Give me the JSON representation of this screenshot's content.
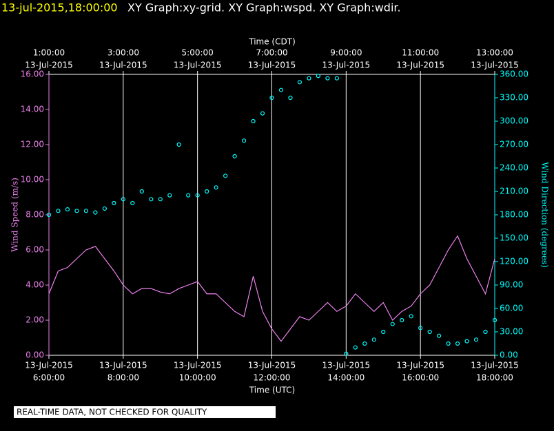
{
  "header": {
    "timestamp": "13-jul-2015,18:00:00",
    "graphs": "XY Graph:xy-grid.  XY Graph:wspd.  XY Graph:wdir."
  },
  "chart_data": {
    "type": "line-scatter",
    "x_label": "Time (UTC)",
    "x2_label": "Time (CDT)",
    "y_label": "Wind Speed (m/s)",
    "y2_label": "Wind Direction (degrees)",
    "xlim": [
      6,
      18
    ],
    "xticks": [
      {
        "value": 6,
        "label": "6:00:00"
      },
      {
        "value": 8,
        "label": "8:00:00"
      },
      {
        "value": 10,
        "label": "10:00:00"
      },
      {
        "value": 12,
        "label": "12:00:00"
      },
      {
        "value": 14,
        "label": "14:00:00"
      },
      {
        "value": 16,
        "label": "16:00:00"
      },
      {
        "value": 18,
        "label": "18:00:00"
      }
    ],
    "xtick_dates": [
      "13-Jul-2015",
      "13-Jul-2015",
      "13-Jul-2015",
      "13-Jul-2015",
      "13-Jul-2015",
      "13-Jul-2015",
      "13-Jul-2015"
    ],
    "x2ticks": [
      {
        "value": 6,
        "label": "1:00:00"
      },
      {
        "value": 8,
        "label": "3:00:00"
      },
      {
        "value": 10,
        "label": "5:00:00"
      },
      {
        "value": 12,
        "label": "7:00:00"
      },
      {
        "value": 14,
        "label": "9:00:00"
      },
      {
        "value": 16,
        "label": "11:00:00"
      },
      {
        "value": 18,
        "label": "13:00:00"
      }
    ],
    "x2tick_dates": [
      "13-Jul-2015",
      "13-Jul-2015",
      "13-Jul-2015",
      "13-Jul-2015",
      "13-Jul-2015",
      "13-Jul-2015",
      "13-Jul-2015"
    ],
    "ylim": [
      0,
      16
    ],
    "yticks": [
      {
        "value": 0,
        "label": "0.00"
      },
      {
        "value": 2,
        "label": "2.00"
      },
      {
        "value": 4,
        "label": "4.00"
      },
      {
        "value": 6,
        "label": "6.00"
      },
      {
        "value": 8,
        "label": "8.00"
      },
      {
        "value": 10,
        "label": "10.00"
      },
      {
        "value": 12,
        "label": "12.00"
      },
      {
        "value": 14,
        "label": "14.00"
      },
      {
        "value": 16,
        "label": "16.00"
      }
    ],
    "y2lim": [
      0,
      360
    ],
    "y2ticks": [
      {
        "value": 0,
        "label": "0.00"
      },
      {
        "value": 30,
        "label": "30.00"
      },
      {
        "value": 60,
        "label": "60.00"
      },
      {
        "value": 90,
        "label": "90.00"
      },
      {
        "value": 120,
        "label": "120.00"
      },
      {
        "value": 150,
        "label": "150.00"
      },
      {
        "value": 180,
        "label": "180.00"
      },
      {
        "value": 210,
        "label": "210.00"
      },
      {
        "value": 240,
        "label": "240.00"
      },
      {
        "value": 270,
        "label": "270.00"
      },
      {
        "value": 300,
        "label": "300.00"
      },
      {
        "value": 330,
        "label": "330.00"
      },
      {
        "value": 360,
        "label": "360.00"
      }
    ],
    "grid": true,
    "x": [
      6,
      6.25,
      6.5,
      6.75,
      7,
      7.25,
      7.5,
      7.75,
      8,
      8.25,
      8.5,
      8.75,
      9,
      9.25,
      9.5,
      9.75,
      10,
      10.25,
      10.5,
      10.75,
      11,
      11.25,
      11.5,
      11.75,
      12,
      12.25,
      12.5,
      12.75,
      13,
      13.25,
      13.5,
      13.75,
      14,
      14.25,
      14.5,
      14.75,
      15,
      15.25,
      15.5,
      15.75,
      16,
      16.25,
      16.5,
      16.75,
      17,
      17.25,
      17.5,
      17.75,
      18
    ],
    "series": [
      {
        "kind": "line",
        "color": "#ee82ee",
        "axis": "y",
        "values": [
          3.5,
          4.8,
          5.0,
          5.5,
          6.0,
          6.2,
          5.5,
          4.8,
          4.0,
          3.5,
          3.8,
          3.8,
          3.6,
          3.5,
          3.8,
          4.0,
          4.2,
          3.5,
          3.5,
          3.0,
          2.5,
          2.2,
          4.5,
          2.5,
          1.5,
          0.8,
          1.5,
          2.2,
          2.0,
          2.5,
          3.0,
          2.5,
          2.8,
          3.5,
          3.0,
          2.5,
          3.0,
          2.0,
          2.5,
          2.8,
          3.5,
          4.0,
          5.0,
          6.0,
          6.8,
          5.5,
          4.5,
          3.5,
          5.5
        ]
      },
      {
        "kind": "scatter",
        "color": "#00ffff",
        "axis": "y2",
        "values": [
          180,
          185,
          187,
          185,
          185,
          183,
          188,
          195,
          200,
          195,
          210,
          200,
          200,
          205,
          270,
          205,
          205,
          210,
          215,
          230,
          255,
          275,
          300,
          310,
          330,
          340,
          330,
          350,
          355,
          358,
          355,
          355,
          2,
          10,
          15,
          20,
          30,
          40,
          45,
          50,
          35,
          30,
          25,
          15,
          15,
          18,
          20,
          30,
          45
        ]
      }
    ]
  },
  "footer": {
    "notice": "REAL-TIME DATA, NOT CHECKED FOR QUALITY"
  }
}
